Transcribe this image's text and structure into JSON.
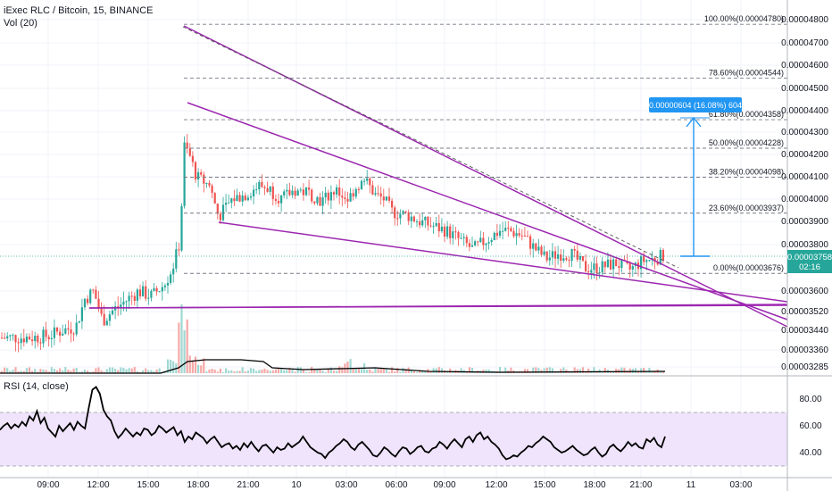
{
  "header": {
    "symbol": "iExec RLC / Bitcoin, 15, BINANCE",
    "volume": "Vol (20)",
    "rsi": "RSI (14, close)"
  },
  "colors": {
    "up": "#26a69a",
    "down": "#ef5350",
    "trendline": "#9c27b0",
    "measure": "#2196f3",
    "rsi_line": "#000000",
    "rsi_band": "#ede1fb"
  },
  "chart_data": [
    {
      "type": "candlestick",
      "title": "iExec RLC / Bitcoin, 15, BINANCE",
      "y_ticks": [
        "0.00004800",
        "0.00004700",
        "0.00004600",
        "0.00004500",
        "0.00004400",
        "0.00004300",
        "0.00004200",
        "0.00004100",
        "0.00004000",
        "0.00003900",
        "0.00003800",
        "0.00003600",
        "0.00003520",
        "0.00003440",
        "0.00003360",
        "0.00003285"
      ],
      "x_ticks": [
        "09:00",
        "12:00",
        "15:00",
        "18:00",
        "21:00",
        "10",
        "03:00",
        "06:00",
        "09:00",
        "12:00",
        "15:00",
        "18:00",
        "21:00",
        "11",
        "03:00"
      ],
      "last_price": "0.00003758",
      "countdown": "02:16",
      "price_range_label": "0.00000604 (16.08%) 604",
      "fib_levels": [
        {
          "label": "100.00%(0.00004780)",
          "value": 4.78e-05
        },
        {
          "label": "78.60%(0.00004544)",
          "value": 4.544e-05
        },
        {
          "label": "61.80%(0.00004358)",
          "value": 4.358e-05
        },
        {
          "label": "50.00%(0.00004228)",
          "value": 4.228e-05
        },
        {
          "label": "38.20%(0.00004098)",
          "value": 4.098e-05
        },
        {
          "label": "23.60%(0.00003937)",
          "value": 3.937e-05
        },
        {
          "label": "0.00%(0.00003676)",
          "value": 3.676e-05
        }
      ],
      "series_close_approx": [
        {
          "x": "09:00",
          "y": 3.41e-05
        },
        {
          "x": "12:00",
          "y": 3.57e-05
        },
        {
          "x": "15:00",
          "y": 3.59e-05
        },
        {
          "x": "17:30",
          "y": 4.23e-05
        },
        {
          "x": "18:00",
          "y": 4.05e-05
        },
        {
          "x": "21:00",
          "y": 3.97e-05
        },
        {
          "x": "10",
          "y": 4.04e-05
        },
        {
          "x": "03:00",
          "y": 4.03e-05
        },
        {
          "x": "06:00",
          "y": 3.91e-05
        },
        {
          "x": "09:00",
          "y": 3.82e-05
        },
        {
          "x": "12:00",
          "y": 3.85e-05
        },
        {
          "x": "15:00",
          "y": 3.77e-05
        },
        {
          "x": "18:00",
          "y": 3.72e-05
        },
        {
          "x": "21:00",
          "y": 3.75e-05
        }
      ]
    },
    {
      "type": "line",
      "title": "RSI (14, close)",
      "y_ticks": [
        "80.00",
        "60.00",
        "40.00"
      ],
      "band": [
        30,
        70
      ],
      "ylim": [
        20,
        95
      ],
      "values": [
        57,
        60,
        62,
        58,
        61,
        59,
        63,
        60,
        67,
        64,
        71,
        62,
        66,
        58,
        55,
        52,
        60,
        56,
        59,
        62,
        57,
        63,
        60,
        58,
        73,
        87,
        89,
        84,
        72,
        67,
        64,
        56,
        51,
        54,
        58,
        55,
        52,
        55,
        53,
        58,
        57,
        53,
        55,
        60,
        58,
        55,
        57,
        59,
        53,
        56,
        48,
        52,
        50,
        55,
        53,
        51,
        47,
        50,
        52,
        48,
        44,
        46,
        47,
        43,
        45,
        42,
        47,
        44,
        48,
        44,
        41,
        45,
        46,
        43,
        40,
        44,
        42,
        43,
        47,
        44,
        46,
        48,
        52,
        48,
        44,
        42,
        40,
        39,
        36,
        40,
        42,
        45,
        47,
        50,
        48,
        44,
        42,
        46,
        48,
        45,
        42,
        38,
        37,
        40,
        44,
        42,
        39,
        37,
        41,
        44,
        43,
        39,
        41,
        44,
        45,
        41,
        40,
        43,
        44,
        48,
        46,
        43,
        47,
        50,
        47,
        44,
        50,
        52,
        48,
        53,
        55,
        50,
        52,
        48,
        46,
        43,
        38,
        35,
        36,
        38,
        37,
        40,
        42,
        45,
        44,
        47,
        49,
        52,
        50,
        48,
        44,
        42,
        40,
        41,
        43,
        45,
        42,
        40,
        38,
        39,
        42,
        44,
        40,
        37,
        39,
        44,
        46,
        43,
        41,
        44,
        48,
        45,
        47,
        44,
        43,
        50,
        48,
        51,
        46,
        44,
        52
      ]
    }
  ]
}
